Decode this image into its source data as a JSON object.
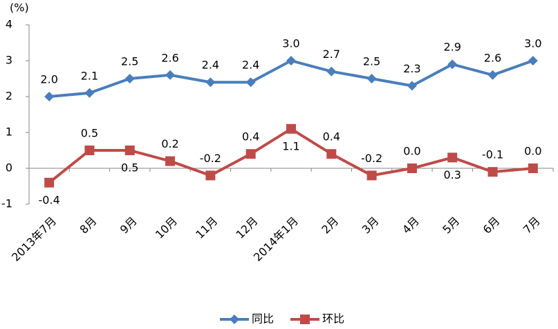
{
  "chart_data": {
    "type": "line",
    "y_unit": "(%)",
    "categories": [
      "2013年7月",
      "8月",
      "9月",
      "10月",
      "11月",
      "12月",
      "2014年1月",
      "2月",
      "3月",
      "4月",
      "5月",
      "6月",
      "7月"
    ],
    "series": [
      {
        "name": "同比",
        "color": "#4a7ebb",
        "marker": "diamond",
        "values": [
          2.0,
          2.1,
          2.5,
          2.6,
          2.4,
          2.4,
          3.0,
          2.7,
          2.5,
          2.3,
          2.9,
          2.6,
          3.0
        ],
        "value_labels": [
          "2.0",
          "2.1",
          "2.5",
          "2.6",
          "2.4",
          "2.4",
          "3.0",
          "2.7",
          "2.5",
          "2.3",
          "2.9",
          "2.6",
          "3.0"
        ]
      },
      {
        "name": "环比",
        "color": "#be4b48",
        "marker": "square",
        "values": [
          -0.4,
          0.5,
          0.5,
          0.2,
          -0.2,
          0.4,
          1.1,
          0.4,
          -0.2,
          0.0,
          0.3,
          -0.1,
          0.0
        ],
        "value_labels": [
          "-0.4",
          "0.5",
          "0.5",
          "0.2",
          "-0.2",
          "0.4",
          "1.1",
          "0.4",
          "-0.2",
          "0.0",
          "0.3",
          "-0.1",
          "0.0"
        ]
      }
    ],
    "ylim": [
      -1,
      4
    ],
    "yticks": [
      -1,
      0,
      1,
      2,
      3,
      4
    ],
    "grid": false,
    "legend": "bottom"
  }
}
